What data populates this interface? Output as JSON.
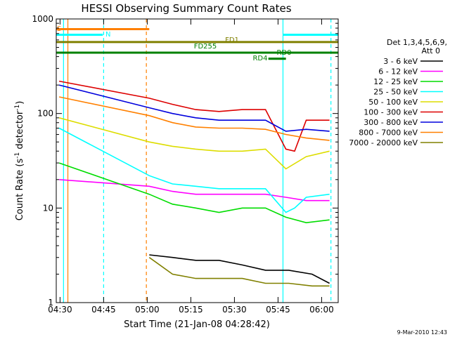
{
  "chart_data": {
    "type": "line",
    "title": "HESSI Observing Summary Count Rates",
    "xlabel": "Start Time (21-Jan-08 04:28:42)",
    "ylabel_main": "Count Rate (s",
    "ylabel_sup1": "-1",
    "ylabel_mid": " detector",
    "ylabel_sup2": "-1",
    "ylabel_end": ")",
    "x_unit": "minutes after 04:28:42",
    "xlim": [
      0,
      97
    ],
    "ylim": [
      1,
      1000
    ],
    "yscale": "log",
    "x_tick_labels": [
      "04:30",
      "04:45",
      "05:00",
      "05:15",
      "05:30",
      "05:45",
      "06:00"
    ],
    "x_tick_values": [
      1.3,
      16.3,
      31.3,
      46.3,
      61.3,
      76.3,
      91.3
    ],
    "y_tick_labels": [
      "1",
      "10",
      "100",
      "1000"
    ],
    "y_tick_values": [
      1,
      10,
      100,
      1000
    ],
    "legend_placement": "right",
    "legend_header": [
      "Det 1,3,4,5,6,9,",
      "Att 0"
    ],
    "series": [
      {
        "name": "3 - 6 keV",
        "color": "#000000",
        "data": [
          [
            32,
            3.2
          ],
          [
            40,
            3.0
          ],
          [
            48,
            2.8
          ],
          [
            56,
            2.8
          ],
          [
            64,
            2.5
          ],
          [
            72,
            2.2
          ],
          [
            80,
            2.2
          ],
          [
            88,
            2.0
          ],
          [
            94,
            1.6
          ]
        ]
      },
      {
        "name": "6 - 12 keV",
        "color": "#ff00ff",
        "data": [
          [
            1,
            20
          ],
          [
            32,
            17
          ],
          [
            40,
            15
          ],
          [
            48,
            14
          ],
          [
            56,
            14
          ],
          [
            64,
            14
          ],
          [
            72,
            14
          ],
          [
            79,
            13
          ],
          [
            86,
            12
          ],
          [
            94,
            12
          ]
        ]
      },
      {
        "name": "12 - 25 keV",
        "color": "#00dd00",
        "data": [
          [
            1,
            30
          ],
          [
            32,
            14
          ],
          [
            40,
            11
          ],
          [
            48,
            10
          ],
          [
            56,
            9
          ],
          [
            64,
            10
          ],
          [
            72,
            10
          ],
          [
            79,
            8
          ],
          [
            86,
            7
          ],
          [
            94,
            7.5
          ]
        ]
      },
      {
        "name": "25 - 50 keV",
        "color": "#00ffff",
        "data": [
          [
            1,
            70
          ],
          [
            32,
            22
          ],
          [
            40,
            18
          ],
          [
            48,
            17
          ],
          [
            56,
            16
          ],
          [
            64,
            16
          ],
          [
            72,
            16
          ],
          [
            79,
            9
          ],
          [
            82,
            10
          ],
          [
            86,
            13
          ],
          [
            94,
            14
          ]
        ]
      },
      {
        "name": "50 - 100 keV",
        "color": "#dddd00",
        "data": [
          [
            1,
            90
          ],
          [
            32,
            50
          ],
          [
            40,
            45
          ],
          [
            48,
            42
          ],
          [
            56,
            40
          ],
          [
            64,
            40
          ],
          [
            72,
            42
          ],
          [
            79,
            26
          ],
          [
            86,
            35
          ],
          [
            94,
            40
          ]
        ]
      },
      {
        "name": "100 - 300 keV",
        "color": "#dd0000",
        "data": [
          [
            1,
            220
          ],
          [
            32,
            145
          ],
          [
            40,
            125
          ],
          [
            48,
            110
          ],
          [
            56,
            105
          ],
          [
            64,
            110
          ],
          [
            72,
            110
          ],
          [
            79,
            42
          ],
          [
            82,
            40
          ],
          [
            86,
            85
          ],
          [
            94,
            85
          ]
        ]
      },
      {
        "name": "300 - 800 keV",
        "color": "#0000dd",
        "data": [
          [
            1,
            200
          ],
          [
            32,
            115
          ],
          [
            40,
            100
          ],
          [
            48,
            90
          ],
          [
            56,
            85
          ],
          [
            64,
            85
          ],
          [
            72,
            85
          ],
          [
            79,
            65
          ],
          [
            86,
            68
          ],
          [
            94,
            65
          ]
        ]
      },
      {
        "name": "800 - 7000 keV",
        "color": "#ff8000",
        "data": [
          [
            1,
            150
          ],
          [
            32,
            95
          ],
          [
            40,
            80
          ],
          [
            48,
            72
          ],
          [
            56,
            70
          ],
          [
            64,
            70
          ],
          [
            72,
            68
          ],
          [
            79,
            60
          ],
          [
            86,
            55
          ],
          [
            94,
            52
          ]
        ]
      },
      {
        "name": "7000 - 20000 keV",
        "color": "#808000",
        "data": [
          [
            32,
            3
          ],
          [
            40,
            2
          ],
          [
            48,
            1.8
          ],
          [
            56,
            1.8
          ],
          [
            64,
            1.8
          ],
          [
            72,
            1.6
          ],
          [
            80,
            1.6
          ],
          [
            88,
            1.5
          ],
          [
            94,
            1.5
          ]
        ]
      }
    ],
    "flag_bars": [
      {
        "label": "S",
        "color": "#ff8000",
        "y": 780,
        "x_start": 0,
        "x_end": 32
      },
      {
        "label": "N",
        "color": "#00ffff",
        "y": 680,
        "x_start": 0,
        "x_end": 16
      },
      {
        "label": "",
        "color": "#00ffff",
        "y": 680,
        "x_start": 78,
        "x_end": 97
      },
      {
        "label": "FD1",
        "color": "#808000",
        "y": 570,
        "x_start": 0,
        "x_end": 97
      },
      {
        "label": "FD255",
        "color": "#008000",
        "y": 440,
        "x_start": 0,
        "x_end": 97
      },
      {
        "label": "RD0",
        "color": "#008000",
        "y": 380,
        "x_start": 73,
        "x_end": 79
      },
      {
        "label": "RD4",
        "color": "#008000",
        "y": 380,
        "x_start": 73,
        "x_end": 79
      }
    ],
    "vertical_markers": [
      {
        "x": 2.5,
        "color": "#00ffff",
        "style": "solid"
      },
      {
        "x": 4,
        "color": "#ff8000",
        "style": "solid"
      },
      {
        "x": 16.3,
        "color": "#00ffff",
        "style": "dashed"
      },
      {
        "x": 31,
        "color": "#ff8000",
        "style": "dashed"
      },
      {
        "x": 78,
        "color": "#00ffff",
        "style": "solid"
      },
      {
        "x": 94.5,
        "color": "#00ffff",
        "style": "dashed"
      }
    ],
    "footer": "9-Mar-2010 12:43"
  }
}
